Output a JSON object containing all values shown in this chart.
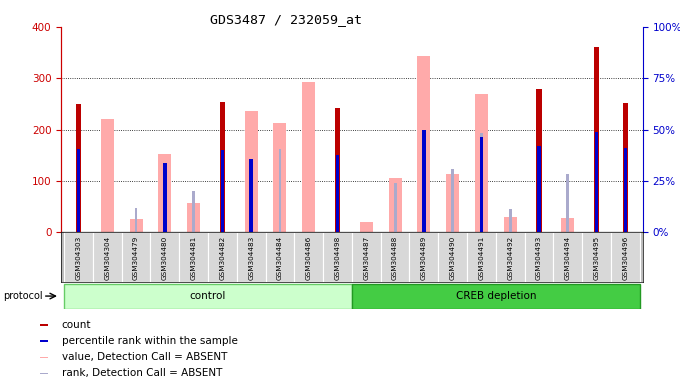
{
  "title": "GDS3487 / 232059_at",
  "samples": [
    "GSM304303",
    "GSM304304",
    "GSM304479",
    "GSM304480",
    "GSM304481",
    "GSM304482",
    "GSM304483",
    "GSM304484",
    "GSM304486",
    "GSM304498",
    "GSM304487",
    "GSM304488",
    "GSM304489",
    "GSM304490",
    "GSM304491",
    "GSM304492",
    "GSM304493",
    "GSM304494",
    "GSM304495",
    "GSM304496"
  ],
  "count": [
    250,
    0,
    0,
    0,
    0,
    253,
    0,
    0,
    0,
    243,
    0,
    0,
    0,
    0,
    0,
    0,
    280,
    0,
    360,
    252
  ],
  "percentile_rank": [
    163,
    0,
    0,
    135,
    0,
    160,
    143,
    0,
    0,
    150,
    0,
    0,
    200,
    0,
    185,
    0,
    168,
    0,
    195,
    165
  ],
  "value_absent": [
    0,
    220,
    25,
    153,
    57,
    0,
    237,
    213,
    293,
    0,
    20,
    105,
    343,
    113,
    270,
    30,
    0,
    27,
    0,
    0
  ],
  "rank_absent": [
    0,
    0,
    48,
    0,
    80,
    0,
    0,
    163,
    0,
    0,
    0,
    97,
    0,
    123,
    193,
    45,
    0,
    113,
    0,
    0
  ],
  "ylim_left": [
    0,
    400
  ],
  "ylim_right": [
    0,
    100
  ],
  "yticks_left": [
    0,
    100,
    200,
    300,
    400
  ],
  "yticks_right": [
    0,
    25,
    50,
    75,
    100
  ],
  "colors": {
    "count": "#bb0000",
    "percentile": "#0000cc",
    "value_absent": "#ffaaaa",
    "rank_absent": "#aaaacc",
    "axis_left_color": "#cc0000",
    "axis_right_color": "#0000cc",
    "group_control_light": "#ccffcc",
    "group_control_border": "#66cc66",
    "group_creb_light": "#44cc44",
    "group_creb_border": "#229922"
  },
  "legend_items": [
    {
      "label": "count",
      "color": "#bb0000"
    },
    {
      "label": "percentile rank within the sample",
      "color": "#0000cc"
    },
    {
      "label": "value, Detection Call = ABSENT",
      "color": "#ffaaaa"
    },
    {
      "label": "rank, Detection Call = ABSENT",
      "color": "#aaaacc"
    }
  ]
}
